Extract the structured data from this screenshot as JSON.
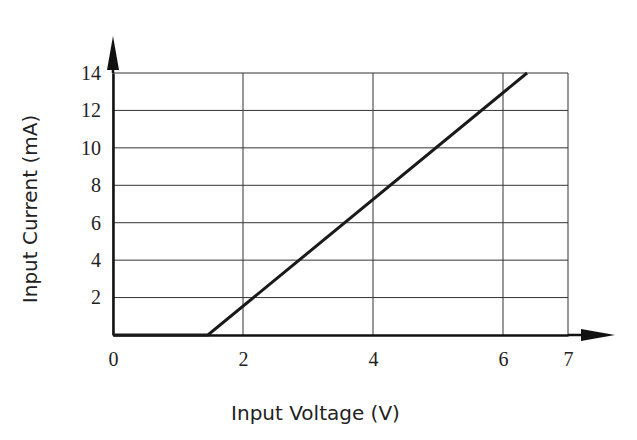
{
  "chart_data": {
    "type": "line",
    "x_label": "Input Voltage (V)",
    "y_label": "Input Current (mA)",
    "x": [
      0,
      1.46,
      6.37
    ],
    "values": [
      0,
      0,
      14
    ],
    "color": "#1a1a1a",
    "xlim": [
      0,
      7
    ],
    "ylim": [
      0,
      14
    ],
    "xticks": [
      0,
      2,
      4,
      6,
      7
    ],
    "yticks": [
      2,
      4,
      6,
      8,
      10,
      12,
      14
    ],
    "grid": true,
    "line_style": "solid",
    "marker": "none"
  }
}
